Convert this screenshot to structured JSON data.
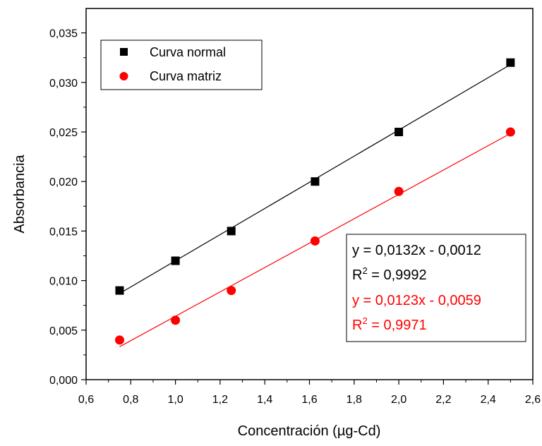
{
  "chart_data": {
    "type": "scatter",
    "xlabel": "Concentración (µg-Cd)",
    "ylabel": "Absorbancia",
    "xlim": [
      0.6,
      2.6
    ],
    "ylim": [
      0.0,
      0.036
    ],
    "xticks": [
      "0,6",
      "0,8",
      "1,0",
      "1,2",
      "1,4",
      "1,6",
      "1,8",
      "2,0",
      "2,2",
      "2,4",
      "2,6"
    ],
    "yticks": [
      "0,000",
      "0,005",
      "0,010",
      "0,015",
      "0,020",
      "0,025",
      "0,030",
      "0,035"
    ],
    "legend_position": "top-left",
    "series": [
      {
        "name": "Curva normal",
        "color": "#000000",
        "marker": "square",
        "x": [
          0.75,
          1.0,
          1.25,
          1.625,
          2.0,
          2.5
        ],
        "y": [
          0.009,
          0.012,
          0.015,
          0.02,
          0.025,
          0.032
        ],
        "fit": {
          "slope": 0.0132,
          "intercept": -0.0012,
          "equation": "y = 0,0132x - 0,0012",
          "r2_label": "R",
          "r2_sup": "2",
          "r2_value": " = 0,9992"
        }
      },
      {
        "name": "Curva matriz",
        "color": "#ff0000",
        "marker": "circle",
        "x": [
          0.75,
          1.0,
          1.25,
          1.625,
          2.0,
          2.5
        ],
        "y": [
          0.004,
          0.006,
          0.009,
          0.014,
          0.019,
          0.025
        ],
        "fit": {
          "slope": 0.0123,
          "intercept": -0.0059,
          "equation": "y = 0,0123x - 0,0059",
          "r2_label": "R",
          "r2_sup": "2",
          "r2_value": " = 0,9971"
        }
      }
    ]
  }
}
